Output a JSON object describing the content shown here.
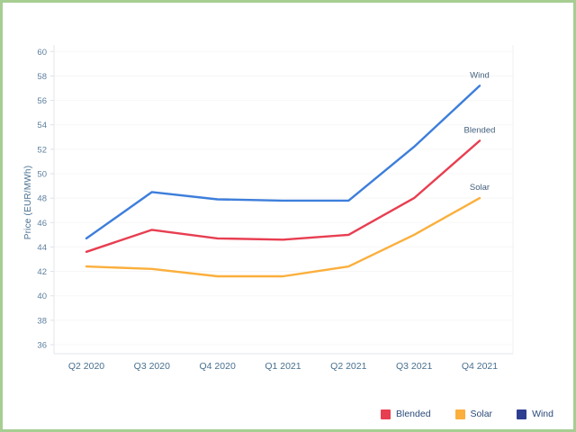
{
  "frame": {
    "border_color": "#a6ce92",
    "background_color": "#ffffff"
  },
  "chart_data": {
    "type": "line",
    "title": "",
    "xlabel": "",
    "ylabel": "Price (EUR/MWh)",
    "ylim": [
      36,
      60
    ],
    "ytick_step": 2,
    "ytick_labels": [
      "36",
      "38",
      "40",
      "42",
      "44",
      "46",
      "48",
      "50",
      "52",
      "54",
      "56",
      "58",
      "60"
    ],
    "grid": "faint horizontal gridlines on",
    "legend_position": "bottom-right",
    "categories": [
      "Q2 2020",
      "Q3 2020",
      "Q4 2020",
      "Q1 2021",
      "Q2 2021",
      "Q3 2021",
      "Q4 2021"
    ],
    "series": [
      {
        "name": "Blended",
        "line_color": "#e83e51",
        "legend_swatch_color": "#e83e51",
        "end_label": "Blended",
        "values": [
          43.6,
          45.4,
          44.7,
          44.6,
          45.0,
          48.0,
          52.7
        ]
      },
      {
        "name": "Solar",
        "line_color": "#fbaf3c",
        "legend_swatch_color": "#fbaf3c",
        "end_label": "Solar",
        "values": [
          42.4,
          42.2,
          41.6,
          41.6,
          42.4,
          45.0,
          48.0
        ]
      },
      {
        "name": "Wind",
        "line_color": "#3d7edb",
        "legend_swatch_color": "#2e3f90",
        "end_label": "Wind",
        "values": [
          44.7,
          48.5,
          47.9,
          47.8,
          47.8,
          52.2,
          57.2
        ]
      }
    ]
  },
  "colors": {
    "gridline": "#f7f7f7",
    "axis_line": "#e3e6ea",
    "tick_mark": "#d9e2ea",
    "ytick_text": "#5d7f9e",
    "category_text": "#47708f",
    "legend_text": "#2b4a7a",
    "end_label_text": "#44607c"
  }
}
